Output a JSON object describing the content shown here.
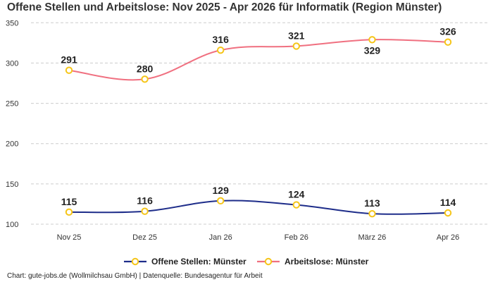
{
  "title": "Offene Stellen und Arbeitslose: Nov 2025 - Apr 2026 für Informatik (Region Münster)",
  "footer": "Chart: gute-jobs.de (Wollmilchsau GmbH) | Datenquelle: Bundesagentur für Arbeit",
  "colors": {
    "offene": "#1e2d8a",
    "arbeitslose": "#f07080",
    "marker": "#f5c518",
    "grid": "#cccccc"
  },
  "chart_data": {
    "type": "line",
    "title": "Offene Stellen und Arbeitslose: Nov 2025 - Apr 2026 für Informatik (Region Münster)",
    "categories": [
      "Nov 25",
      "Dez 25",
      "Jan 26",
      "Feb 26",
      "März 26",
      "Apr 26"
    ],
    "yticks": [
      100,
      150,
      200,
      250,
      300,
      350
    ],
    "ylim": [
      93,
      352
    ],
    "grid": true,
    "legend_position": "bottom",
    "series": [
      {
        "name": "Offene Stellen: Münster",
        "values": [
          115,
          116,
          129,
          124,
          113,
          114
        ]
      },
      {
        "name": "Arbeitslose: Münster",
        "values": [
          291,
          280,
          316,
          321,
          329,
          326
        ]
      }
    ]
  }
}
